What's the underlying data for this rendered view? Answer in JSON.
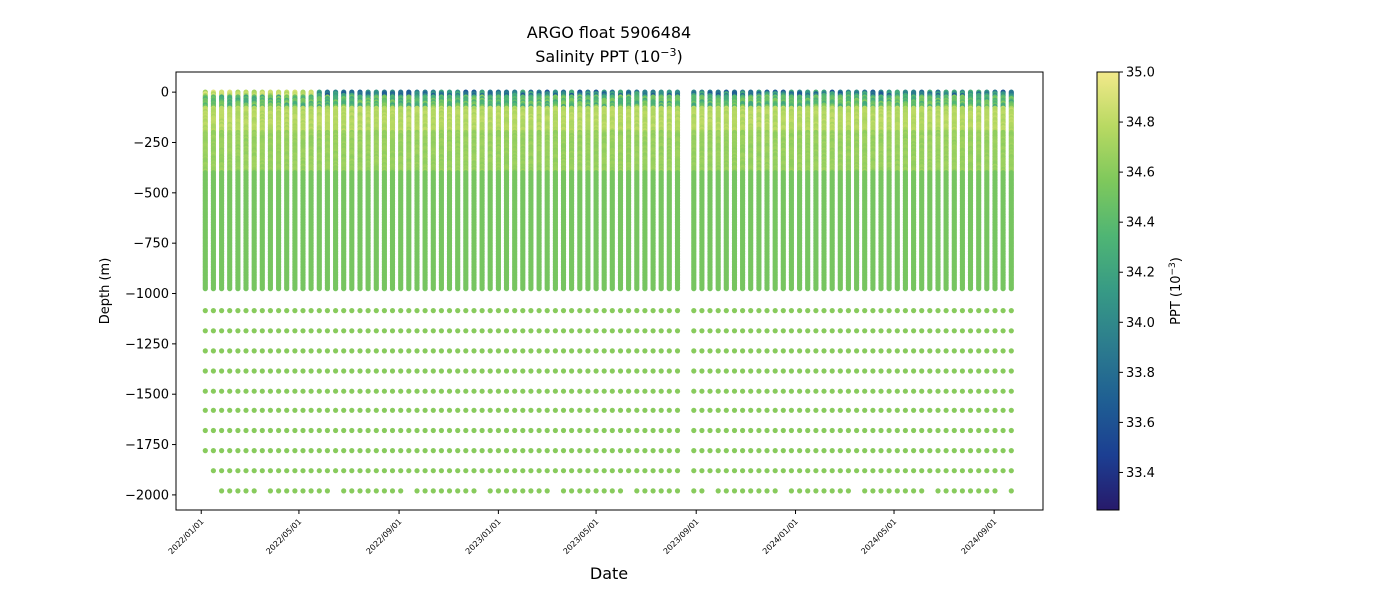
{
  "chart_data": {
    "type": "scatter",
    "title": "ARGO float 5906484",
    "subtitle": "Salinity PPT (10",
    "subtitle_exp": "−3",
    "subtitle_end": ")",
    "xlabel": "Date",
    "ylabel": "Depth (m)",
    "x_range": [
      "2021-12-01",
      "2024-10-31"
    ],
    "x_ticks": [
      "2022/01/01",
      "2022/05/01",
      "2022/09/01",
      "2023/01/01",
      "2023/05/01",
      "2023/09/01",
      "2024/01/01",
      "2024/05/01",
      "2024/09/01"
    ],
    "ylim": [
      -2075,
      100
    ],
    "y_ticks": [
      0,
      -250,
      -500,
      -750,
      -1000,
      -1250,
      -1500,
      -1750,
      -2000
    ],
    "y_tick_labels": [
      "0",
      "−250",
      "−500",
      "−750",
      "−1000",
      "−1250",
      "−1500",
      "−1750",
      "−2000"
    ],
    "profiles": {
      "first_date": "2022-01-06",
      "last_date": "2024-09-27",
      "interval_days": 10,
      "gap": [
        "2023-08-12",
        "2023-08-28"
      ]
    },
    "upper_depth_range": [
      0,
      -980
    ],
    "deep_levels": [
      -1085,
      -1185,
      -1285,
      -1385,
      -1485,
      -1580,
      -1680,
      -1780,
      -1880,
      -1980
    ],
    "color_scale": {
      "label": "PPT (10",
      "label_exp": "−3",
      "label_end": ")",
      "min": 33.25,
      "max": 35.0,
      "ticks": [
        33.4,
        33.6,
        33.8,
        34.0,
        34.2,
        34.4,
        34.6,
        34.8,
        35.0
      ],
      "tick_labels": [
        "33.4",
        "33.6",
        "33.8",
        "34.0",
        "34.2",
        "34.4",
        "34.6",
        "34.8",
        "35.0"
      ],
      "colormap": [
        "#271a6b",
        "#1c3f92",
        "#1f5f93",
        "#2c7c8e",
        "#379a85",
        "#4fb574",
        "#7ec85c",
        "#b8d962",
        "#f2e98a"
      ]
    },
    "grid": false,
    "legend": "none"
  }
}
